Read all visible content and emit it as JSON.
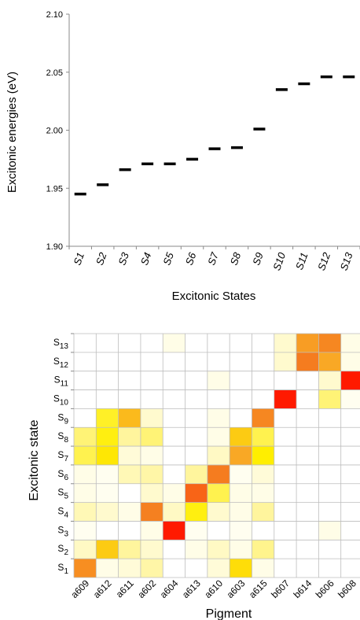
{
  "chart_data": [
    {
      "type": "scatter",
      "marker": "horizontal-dash",
      "xlabel": "Excitonic States",
      "ylabel": "Excitonic energies (eV)",
      "ylim": [
        1.9,
        2.1
      ],
      "yticks": [
        "1.90",
        "1.95",
        "2.00",
        "2.05",
        "2.10"
      ],
      "categories": [
        "S1",
        "S2",
        "S3",
        "S4",
        "S5",
        "S6",
        "S7",
        "S8",
        "S9",
        "S10",
        "S11",
        "S12",
        "S13"
      ],
      "values": [
        1.945,
        1.953,
        1.966,
        1.971,
        1.971,
        1.975,
        1.984,
        1.985,
        2.001,
        2.035,
        2.04,
        2.046,
        2.046
      ],
      "grid": false,
      "marker_color": "#000000"
    },
    {
      "type": "heatmap",
      "xlabel": "Pigment",
      "ylabel": "Excitonic state",
      "x_categories": [
        "a609",
        "a612",
        "a611",
        "a602",
        "a604",
        "a613",
        "a610",
        "a603",
        "a615",
        "b607",
        "b614",
        "b606",
        "b608"
      ],
      "y_categories": [
        {
          "base": "S",
          "sub": "13"
        },
        {
          "base": "S",
          "sub": "12"
        },
        {
          "base": "S",
          "sub": "11"
        },
        {
          "base": "S",
          "sub": "10"
        },
        {
          "base": "S",
          "sub": "9"
        },
        {
          "base": "S",
          "sub": "8"
        },
        {
          "base": "S",
          "sub": "7"
        },
        {
          "base": "S",
          "sub": "6"
        },
        {
          "base": "S",
          "sub": "5"
        },
        {
          "base": "S",
          "sub": "4"
        },
        {
          "base": "S",
          "sub": "3"
        },
        {
          "base": "S",
          "sub": "2"
        },
        {
          "base": "S",
          "sub": "1"
        }
      ],
      "values": [
        [
          0,
          0,
          0,
          0,
          0.05,
          0,
          0,
          0,
          0,
          0.1,
          0.65,
          0.75,
          0.05
        ],
        [
          0,
          0,
          0,
          0,
          0,
          0,
          0,
          0,
          0,
          0.1,
          0.8,
          0.6,
          0.05
        ],
        [
          0,
          0,
          0,
          0,
          0,
          0,
          0.05,
          0,
          0,
          0,
          0,
          0.1,
          1.0
        ],
        [
          0,
          0,
          0,
          0,
          0,
          0,
          0,
          0,
          0,
          1.0,
          0,
          0.25,
          0.03
        ],
        [
          0,
          0.35,
          0.55,
          0.1,
          0,
          0,
          0.05,
          0,
          0.75,
          0,
          0,
          0,
          0
        ],
        [
          0.25,
          0.38,
          0.2,
          0.25,
          0,
          0,
          0.05,
          0.5,
          0.3,
          0,
          0,
          0,
          0
        ],
        [
          0.3,
          0.42,
          0.08,
          0.05,
          0,
          0,
          0.12,
          0.6,
          0.4,
          0,
          0,
          0,
          0
        ],
        [
          0.05,
          0.03,
          0.15,
          0.18,
          0,
          0.2,
          0.8,
          0.03,
          0.08,
          0,
          0,
          0,
          0
        ],
        [
          0.05,
          0.03,
          0,
          0.1,
          0.05,
          0.85,
          0.3,
          0.05,
          0.05,
          0,
          0,
          0,
          0
        ],
        [
          0.15,
          0.1,
          0.05,
          0.78,
          0.12,
          0.38,
          0.1,
          0.05,
          0.2,
          0,
          0,
          0,
          0
        ],
        [
          0.03,
          0,
          0,
          0.05,
          1.0,
          0.03,
          0,
          0.03,
          0,
          0,
          0,
          0.05,
          0
        ],
        [
          0.12,
          0.5,
          0.2,
          0.1,
          0,
          0.05,
          0.12,
          0.05,
          0.22,
          0,
          0,
          0,
          0
        ],
        [
          0.72,
          0.05,
          0.08,
          0.18,
          0,
          0,
          0.08,
          0.45,
          0.05,
          0,
          0,
          0,
          0
        ]
      ],
      "colormap": [
        "#ffffff",
        "#fff59d",
        "#ffee00",
        "#f9a825",
        "#f57c1f",
        "#ff1a00"
      ],
      "grid": true
    }
  ]
}
